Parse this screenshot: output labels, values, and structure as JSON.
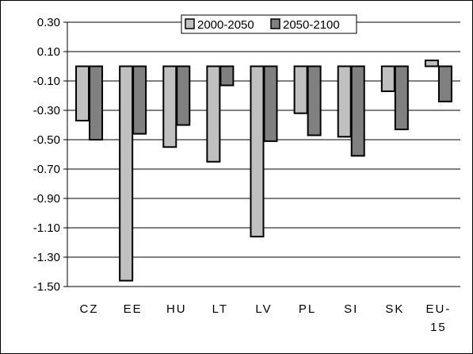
{
  "chart_data": {
    "type": "bar",
    "categories": [
      "CZ",
      "EE",
      "HU",
      "LT",
      "LV",
      "PL",
      "SI",
      "SK",
      "EU-15"
    ],
    "category_lines": [
      [
        "CZ"
      ],
      [
        "EE"
      ],
      [
        "HU"
      ],
      [
        "LT"
      ],
      [
        "LV"
      ],
      [
        "PL"
      ],
      [
        "SI"
      ],
      [
        "SK"
      ],
      [
        "EU-",
        "15"
      ]
    ],
    "series": [
      {
        "name": "2000-2050",
        "color": "#c0c0c0",
        "values": [
          -0.37,
          -1.46,
          -0.55,
          -0.65,
          -1.16,
          -0.32,
          -0.48,
          -0.17,
          0.04
        ]
      },
      {
        "name": "2050-2100",
        "color": "#808080",
        "values": [
          -0.5,
          -0.46,
          -0.4,
          -0.13,
          -0.51,
          -0.47,
          -0.61,
          -0.43,
          -0.24
        ]
      }
    ],
    "ylim": [
      -1.5,
      0.3
    ],
    "yticks": [
      0.3,
      0.1,
      -0.1,
      -0.3,
      -0.5,
      -0.7,
      -0.9,
      -1.1,
      -1.3,
      -1.5
    ],
    "ytick_labels": [
      "0.30",
      "0.10",
      "-0.10",
      "-0.30",
      "-0.50",
      "-0.70",
      "-0.90",
      "-1.10",
      "-1.30",
      "-1.50"
    ],
    "grid": true,
    "legend_position": "top-right",
    "title": "",
    "xlabel": "",
    "ylabel": ""
  }
}
